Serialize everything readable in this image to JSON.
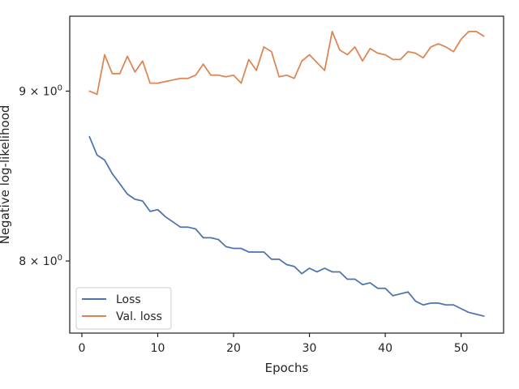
{
  "chart_data": {
    "type": "line",
    "title": "",
    "xlabel": "Epochs",
    "ylabel": "Negative log-likelihood",
    "yscale": "log",
    "xlim": [
      -1.6,
      55.6
    ],
    "ylim": [
      7.61,
      9.48
    ],
    "xticks": [
      0,
      10,
      20,
      30,
      40,
      50
    ],
    "xtick_labels": [
      "0",
      "10",
      "20",
      "30",
      "40",
      "50"
    ],
    "yticks": [
      8,
      9
    ],
    "ytick_labels": [
      "8 × 10",
      "9 × 10"
    ],
    "ytick_exponent": "0",
    "grid": false,
    "legend_position": "lower-left",
    "series": [
      {
        "name": "Loss",
        "color": "#4c72b0",
        "x": [
          1,
          2,
          3,
          4,
          5,
          6,
          7,
          8,
          9,
          10,
          11,
          12,
          13,
          14,
          15,
          16,
          17,
          18,
          19,
          20,
          21,
          22,
          23,
          24,
          25,
          26,
          27,
          28,
          29,
          30,
          31,
          32,
          33,
          34,
          35,
          36,
          37,
          38,
          39,
          40,
          41,
          42,
          43,
          44,
          45,
          46,
          47,
          48,
          49,
          50,
          51,
          52,
          53
        ],
        "values": [
          8.72,
          8.61,
          8.58,
          8.5,
          8.44,
          8.38,
          8.35,
          8.34,
          8.28,
          8.29,
          8.25,
          8.22,
          8.19,
          8.19,
          8.18,
          8.13,
          8.13,
          8.12,
          8.08,
          8.07,
          8.07,
          8.05,
          8.05,
          8.05,
          8.01,
          8.01,
          7.98,
          7.97,
          7.93,
          7.96,
          7.94,
          7.96,
          7.94,
          7.94,
          7.9,
          7.9,
          7.87,
          7.88,
          7.85,
          7.85,
          7.81,
          7.82,
          7.83,
          7.78,
          7.76,
          7.77,
          7.77,
          7.76,
          7.76,
          7.74,
          7.72,
          7.71,
          7.7
        ]
      },
      {
        "name": "Val. loss",
        "color": "#dd8452",
        "x": [
          1,
          2,
          3,
          4,
          5,
          6,
          7,
          8,
          9,
          10,
          11,
          12,
          13,
          14,
          15,
          16,
          17,
          18,
          19,
          20,
          21,
          22,
          23,
          24,
          25,
          26,
          27,
          28,
          29,
          30,
          31,
          32,
          33,
          34,
          35,
          36,
          37,
          38,
          39,
          40,
          41,
          42,
          43,
          44,
          45,
          46,
          47,
          48,
          49,
          50,
          51,
          52,
          53
        ],
        "values": [
          9.0,
          8.98,
          9.23,
          9.11,
          9.11,
          9.22,
          9.12,
          9.19,
          9.05,
          9.05,
          9.06,
          9.07,
          9.08,
          9.08,
          9.1,
          9.17,
          9.1,
          9.1,
          9.09,
          9.1,
          9.05,
          9.2,
          9.13,
          9.28,
          9.25,
          9.09,
          9.1,
          9.08,
          9.19,
          9.23,
          9.18,
          9.13,
          9.38,
          9.26,
          9.23,
          9.28,
          9.19,
          9.27,
          9.24,
          9.23,
          9.2,
          9.2,
          9.25,
          9.24,
          9.21,
          9.28,
          9.3,
          9.28,
          9.25,
          9.33,
          9.38,
          9.38,
          9.35
        ]
      }
    ]
  }
}
